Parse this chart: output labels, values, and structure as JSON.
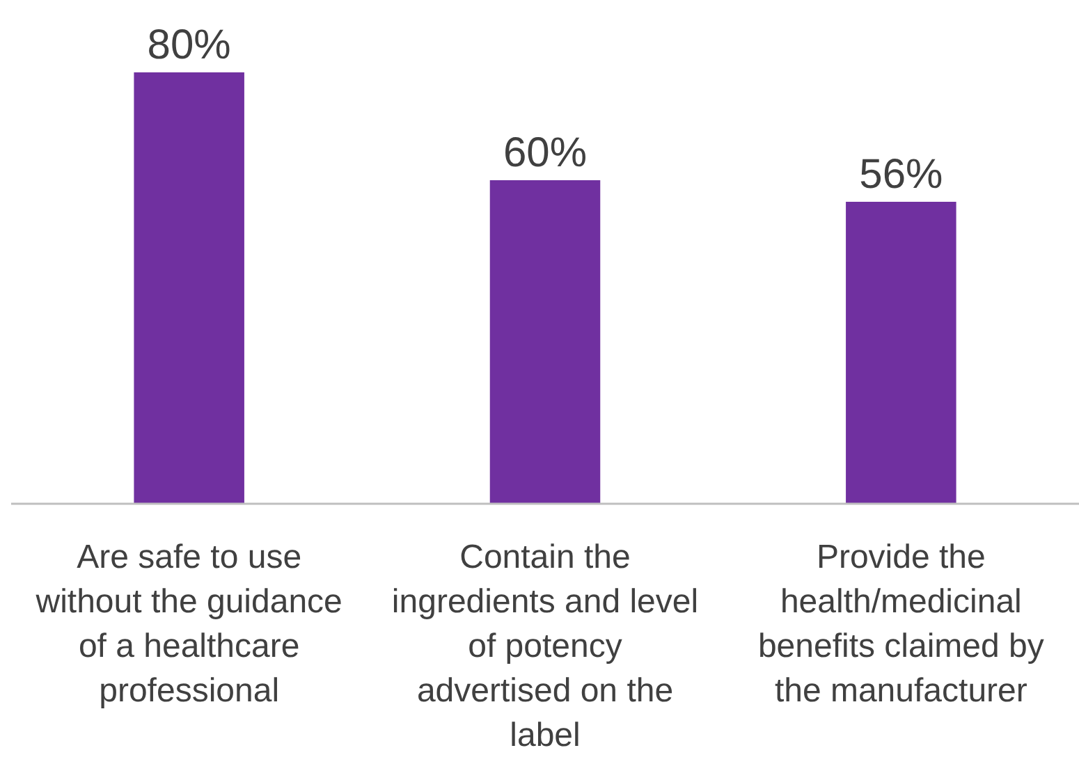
{
  "chart_data": {
    "type": "bar",
    "categories": [
      "Are safe to use without the guidance of a healthcare professional",
      "Contain the ingredients and level of potency advertised on the label",
      "Provide the health/medicinal benefits claimed by the manufacturer"
    ],
    "values": [
      80,
      60,
      56
    ],
    "value_labels": [
      "80%",
      "60%",
      "56%"
    ],
    "color": "#7030a0"
  }
}
